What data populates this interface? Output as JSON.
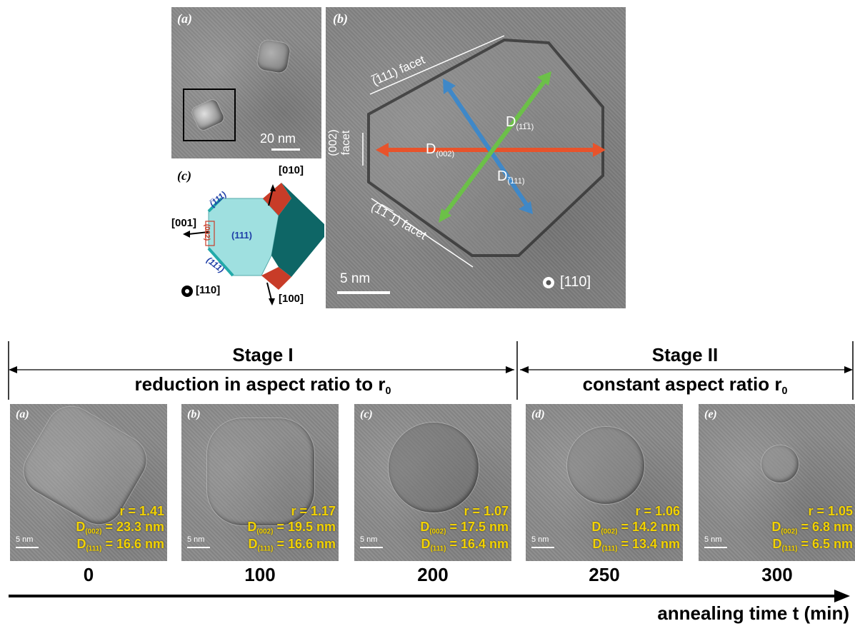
{
  "top_figure": {
    "panel_a": {
      "label": "(a)",
      "scalebar": "20 nm"
    },
    "panel_b": {
      "label": "(b)",
      "facet_top": "(̅111) facet",
      "facet_bottom": "(1̅1̅ 1) facet",
      "facet_left_line1": "(002)",
      "facet_left_line2": "facet",
      "D_002": "D",
      "D_002_sub": "(002)",
      "D_11_1": "D",
      "D_11_1_sub": "(11̅1)",
      "D_111": "D",
      "D_111_sub": "(̅111)",
      "scalebar": "5 nm",
      "zone_axis": "[110]"
    },
    "panel_c": {
      "label": "(c)",
      "dir_010": "[010]",
      "dir_001": "[001]",
      "dir_100": "[100]",
      "zone_axis": "[110]",
      "face_bar111": "(̅111)",
      "face_111": "(111)",
      "face_1bar11": "(11̅1)",
      "face_002": "(002)",
      "colors": {
        "light_face": "#9fe0e0",
        "dark_face": "#0e6666",
        "red_face": "#c83c28",
        "blue_label": "#1f3fa8"
      }
    }
  },
  "bottom_figure": {
    "stage1": {
      "title": "Stage I",
      "subtitle": "reduction in aspect ratio to r",
      "subtitle_sub": "0"
    },
    "stage2": {
      "title": "Stage II",
      "subtitle": "constant aspect ratio r",
      "subtitle_sub": "0"
    },
    "panels": [
      {
        "label": "(a)",
        "r": "r = 1.41",
        "d002_label": "D",
        "d002_sub": "(002)",
        "d002_value": "= 23.3 nm",
        "d111_label": "D",
        "d111_sub": "(̅111)",
        "d111_value": "= 16.6 nm",
        "scalebar": "5 nm",
        "time": "0"
      },
      {
        "label": "(b)",
        "r": "r = 1.17",
        "d002_label": "D",
        "d002_sub": "(002)",
        "d002_value": "= 19.5 nm",
        "d111_label": "D",
        "d111_sub": "(̅111)",
        "d111_value": "= 16.6 nm",
        "scalebar": "5 nm",
        "time": "100"
      },
      {
        "label": "(c)",
        "r": "r = 1.07",
        "d002_label": "D",
        "d002_sub": "(002)",
        "d002_value": "= 17.5 nm",
        "d111_label": "D",
        "d111_sub": "(̅111)",
        "d111_value": "= 16.4 nm",
        "scalebar": "5 nm",
        "time": "200"
      },
      {
        "label": "(d)",
        "r": "r = 1.06",
        "d002_label": "D",
        "d002_sub": "(002)",
        "d002_value": "= 14.2 nm",
        "d111_label": "D",
        "d111_sub": "(̅111)",
        "d111_value": "= 13.4 nm",
        "scalebar": "5 nm",
        "time": "250"
      },
      {
        "label": "(e)",
        "r": "r = 1.05",
        "d002_label": "D",
        "d002_sub": "(002)",
        "d002_value": "= 6.8 nm",
        "d111_label": "D",
        "d111_sub": "(̅111)",
        "d111_value": "= 6.5 nm",
        "scalebar": "5 nm",
        "time": "300"
      }
    ],
    "axis_label": "annealing time t (min)"
  },
  "colors": {
    "arrow_red": "#e8532b",
    "arrow_blue": "#3f88c8",
    "arrow_green": "#6cc048",
    "text_yellow": "#f2d200"
  }
}
